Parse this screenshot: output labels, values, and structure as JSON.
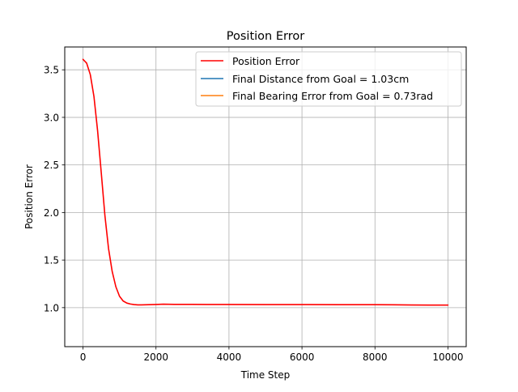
{
  "chart_data": {
    "type": "line",
    "title": "Position Error",
    "xlabel": "Time Step",
    "ylabel": "Position Error",
    "xlim": [
      -500,
      10500
    ],
    "ylim": [
      0.59,
      3.74
    ],
    "xticks": [
      0,
      2000,
      4000,
      6000,
      8000,
      10000
    ],
    "xtick_labels": [
      "0",
      "2000",
      "4000",
      "6000",
      "8000",
      "10000"
    ],
    "yticks": [
      1.0,
      1.5,
      2.0,
      2.5,
      3.0,
      3.5
    ],
    "ytick_labels": [
      "1.0",
      "1.5",
      "2.0",
      "2.5",
      "3.0",
      "3.5"
    ],
    "grid": true,
    "legend_position": "top-right",
    "series": [
      {
        "name": "Position Error",
        "color": "#ff0000",
        "x": [
          0,
          100,
          200,
          300,
          400,
          500,
          600,
          700,
          800,
          900,
          1000,
          1100,
          1200,
          1300,
          1400,
          1500,
          1600,
          1700,
          1800,
          2000,
          2200,
          2500,
          3000,
          4000,
          5000,
          6000,
          7000,
          8000,
          8500,
          9000,
          9500,
          10000
        ],
        "y": [
          3.61,
          3.57,
          3.45,
          3.22,
          2.86,
          2.42,
          1.97,
          1.62,
          1.38,
          1.22,
          1.12,
          1.07,
          1.048,
          1.038,
          1.032,
          1.029,
          1.029,
          1.03,
          1.031,
          1.033,
          1.036,
          1.034,
          1.034,
          1.033,
          1.032,
          1.032,
          1.031,
          1.031,
          1.03,
          1.028,
          1.027,
          1.027
        ]
      },
      {
        "name": "Final Distance from Goal = 1.03cm",
        "color": "#1f77b4",
        "x": [],
        "y": []
      },
      {
        "name": "Final Bearing Error from Goal = 0.73rad",
        "color": "#ff7f0e",
        "x": [],
        "y": []
      }
    ]
  }
}
